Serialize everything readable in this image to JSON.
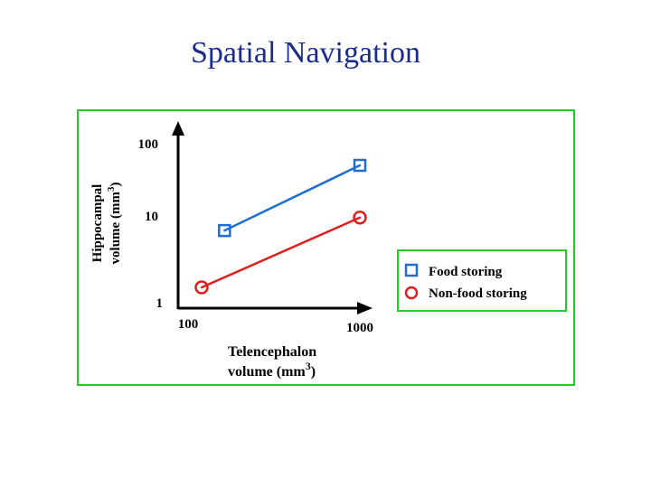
{
  "slide": {
    "title": "Spatial Navigation"
  },
  "chart_data": {
    "type": "line",
    "title": "",
    "xlabel_line1": "Telencephalon",
    "xlabel_line2": "volume (mm",
    "xlabel_sup": "3",
    "xlabel_close": ")",
    "ylabel_line1": "Hippocampal",
    "ylabel_line2": "volume (mm",
    "ylabel_sup": "3",
    "ylabel_close": ")",
    "x_ticks": [
      "100",
      "1000"
    ],
    "y_ticks": [
      "100",
      "10",
      "1"
    ],
    "x_scale": "log",
    "y_scale": "log",
    "xlim": [
      100,
      1000
    ],
    "ylim": [
      1,
      100
    ],
    "grid": false,
    "legend_position": "right",
    "series": [
      {
        "name": "Food storing",
        "marker": "square",
        "color": "#1f6fd0",
        "x": [
          180,
          1000
        ],
        "y": [
          9,
          57
        ]
      },
      {
        "name": "Non-food storing",
        "marker": "circle",
        "color": "#dd2020",
        "x": [
          100,
          1000
        ],
        "y": [
          1.8,
          13
        ]
      }
    ]
  },
  "colors": {
    "frame": "#22cc22",
    "axis": "#000000",
    "title": "#1a2c8c"
  }
}
